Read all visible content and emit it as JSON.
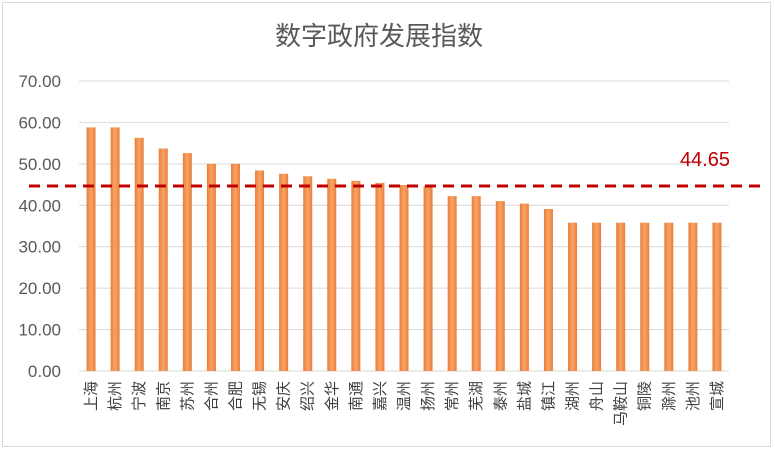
{
  "chart_data": {
    "type": "bar",
    "title": "数字政府发展指数",
    "xlabel": "",
    "ylabel": "",
    "ylim": [
      0,
      70
    ],
    "y_ticks": [
      "0.00",
      "10.00",
      "20.00",
      "30.00",
      "40.00",
      "50.00",
      "60.00",
      "70.00"
    ],
    "grid": true,
    "legend": "none",
    "categories": [
      "上海",
      "杭州",
      "宁波",
      "南京",
      "苏州",
      "合州",
      "合肥",
      "无锡",
      "安庆",
      "绍兴",
      "金华",
      "南通",
      "嘉兴",
      "温州",
      "扬州",
      "常州",
      "芜湖",
      "泰州",
      "盐城",
      "镇江",
      "湖州",
      "舟山",
      "马鞍山",
      "铜陵",
      "滁州",
      "池州",
      "宣城"
    ],
    "values": [
      58.8,
      58.8,
      56.3,
      53.7,
      52.6,
      50.0,
      50.0,
      48.4,
      47.6,
      47.0,
      46.4,
      45.9,
      45.4,
      44.9,
      44.6,
      42.2,
      42.2,
      41.0,
      40.4,
      39.1,
      35.8,
      35.8,
      35.8,
      35.8,
      35.8,
      35.8,
      35.8
    ],
    "reference_line": {
      "value": 44.65,
      "label": "44.65"
    },
    "colors": {
      "bar": "#ed7d31",
      "bar_light": "#f4a46c",
      "reference": "#c00000",
      "grid": "#d9d9d9",
      "text": "#595959"
    }
  }
}
